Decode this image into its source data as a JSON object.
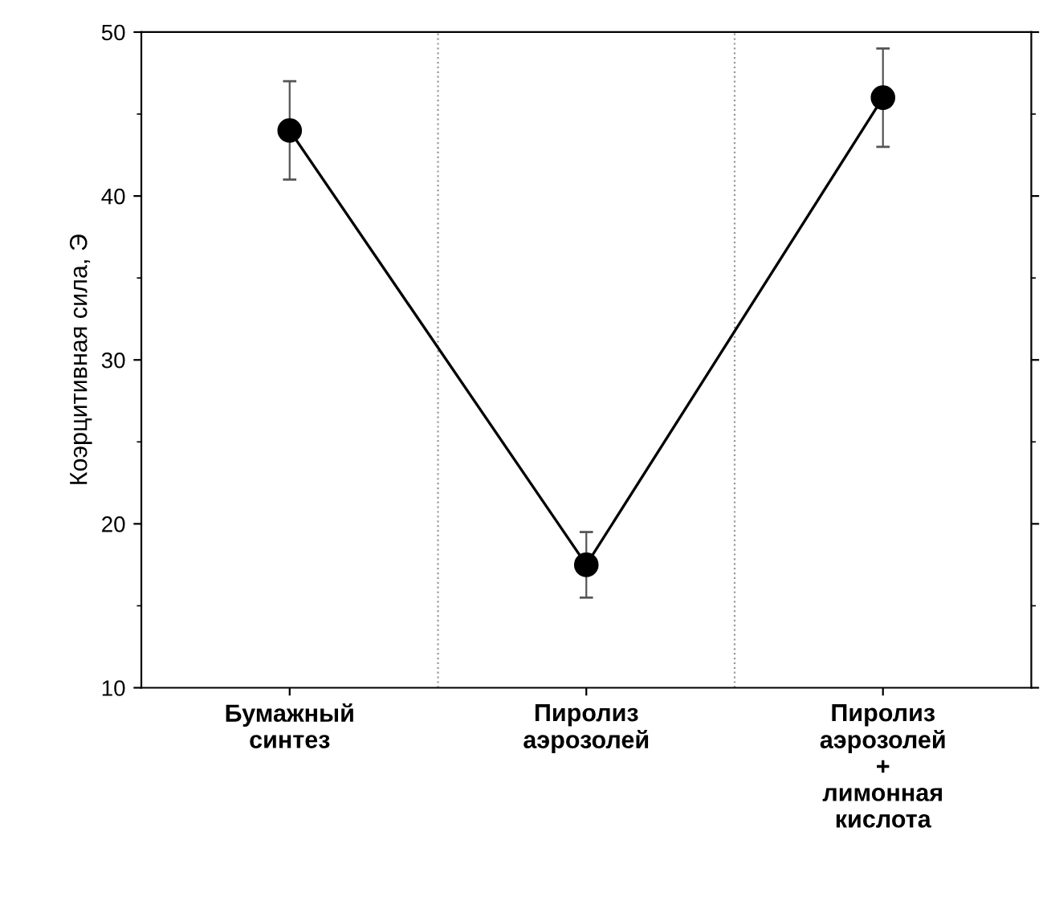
{
  "chart_data": {
    "type": "line",
    "ylabel": "Коэрцитивная сила, Э",
    "categories": [
      "Бумажный\nсинтез",
      "Пиролиз\nаэрозолей",
      "Пиролиз\nаэрозолей\n+\nлимонная\nкислота"
    ],
    "series": [
      {
        "color": "#000000",
        "values": [
          44,
          17.5,
          46
        ],
        "errors": [
          3,
          2,
          3
        ]
      }
    ],
    "ylim": [
      10,
      50
    ],
    "yticks": [
      10,
      20,
      30,
      40,
      50
    ],
    "marker": "circle",
    "line_style": "solid",
    "grid": false,
    "legend": false
  }
}
